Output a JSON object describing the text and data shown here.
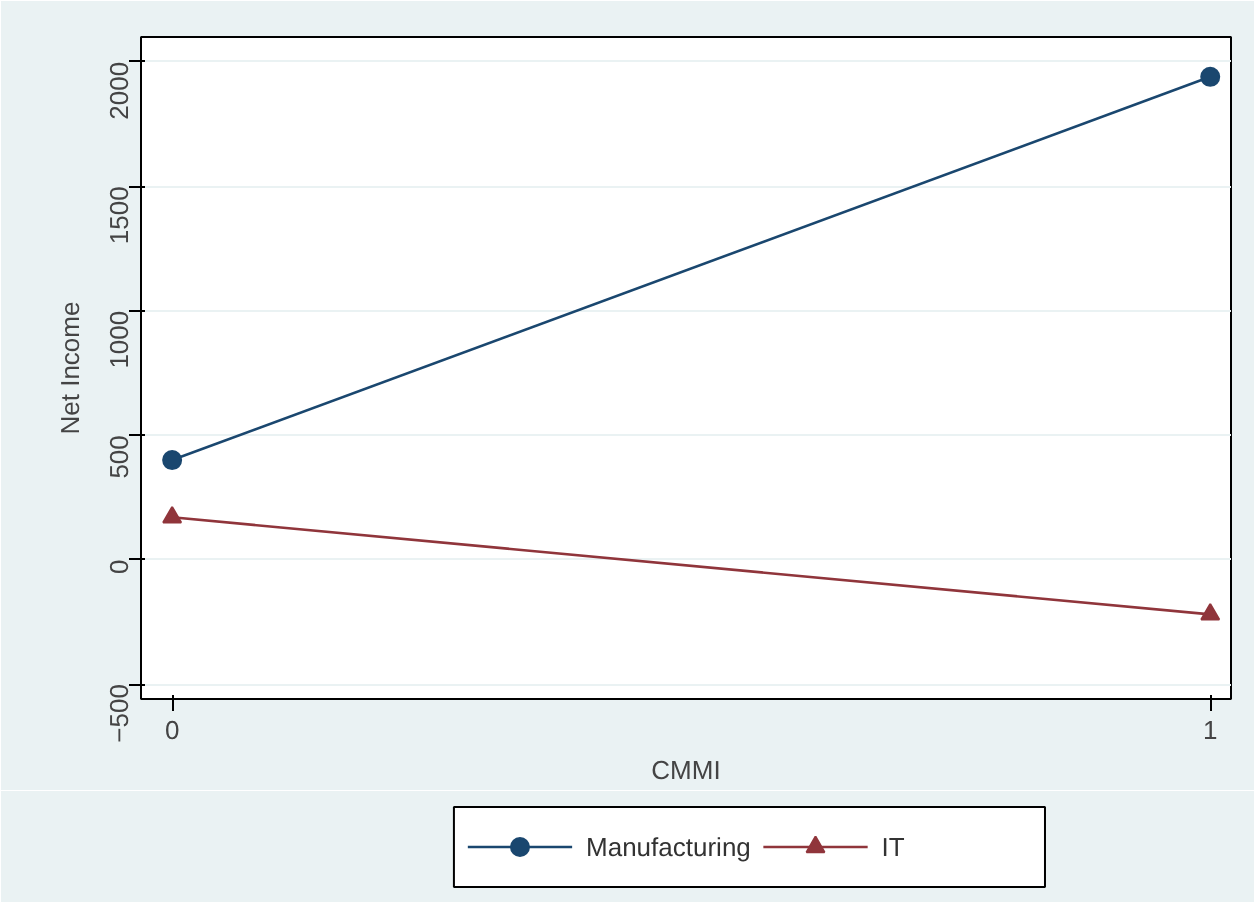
{
  "chart_data": {
    "type": "line",
    "xlabel": "CMMI",
    "ylabel": "Net Income",
    "x": [
      0,
      1
    ],
    "xlim": [
      -0.03,
      1.02
    ],
    "xticks": [
      0,
      1
    ],
    "ylim": [
      -560,
      2100
    ],
    "yticks": [
      -500,
      0,
      500,
      1000,
      1500,
      2000
    ],
    "grid": "y",
    "legend": "bottom",
    "line_style": "solid",
    "series": [
      {
        "name": "Manufacturing",
        "color": "#1a476f",
        "marker": "circle",
        "values": [
          400,
          1940
        ]
      },
      {
        "name": "IT",
        "color": "#90353b",
        "marker": "triangle",
        "values": [
          170,
          -220
        ]
      }
    ]
  }
}
